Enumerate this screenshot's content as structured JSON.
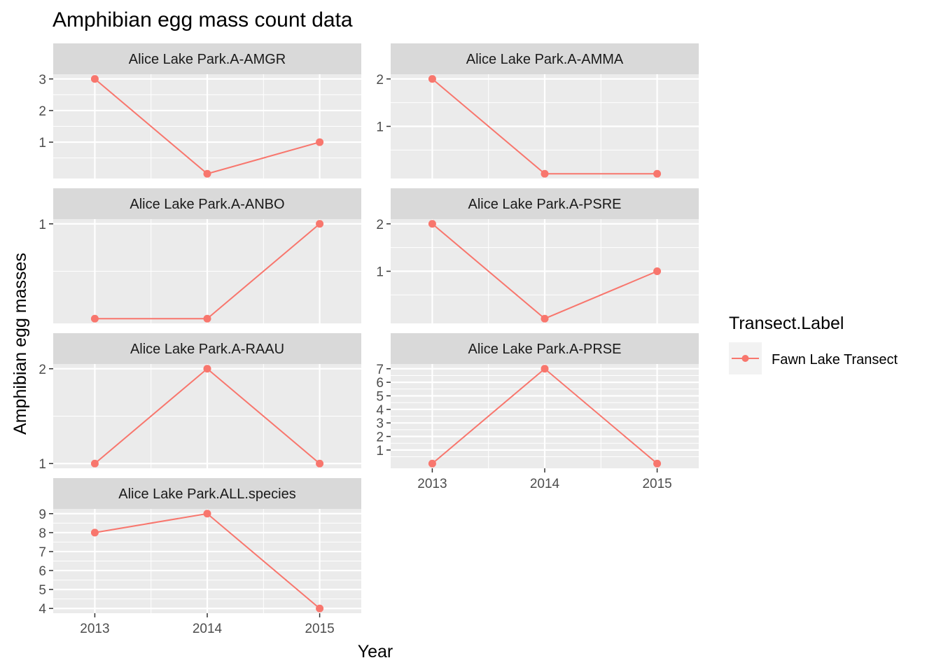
{
  "chart_data": {
    "type": "line",
    "title": "Amphibian egg mass count data",
    "xlabel": "Year",
    "ylabel": "Amphibian egg masses",
    "x_ticks": [
      2013,
      2014,
      2015
    ],
    "grid": true,
    "facet_scales": "free_y",
    "legend": {
      "title": "Transect.Label",
      "position": "right",
      "entries": [
        {
          "name": "Fawn Lake Transect",
          "color": "#F8766D"
        }
      ]
    },
    "series_color": "#F8766D",
    "panels": [
      {
        "label": "Alice Lake Park.A-AMGR",
        "x": [
          2013,
          2014,
          2015
        ],
        "y": [
          3,
          0,
          1
        ],
        "ylim": [
          -0.15,
          3.15
        ],
        "y_ticks": [
          1,
          2,
          3
        ]
      },
      {
        "label": "Alice Lake Park.A-AMMA",
        "x": [
          2013,
          2014,
          2015
        ],
        "y": [
          2,
          0,
          0
        ],
        "ylim": [
          -0.1,
          2.1
        ],
        "y_ticks": [
          1,
          2
        ]
      },
      {
        "label": "Alice Lake Park.A-ANBO",
        "x": [
          2013,
          2014,
          2015
        ],
        "y": [
          0,
          0,
          1
        ],
        "ylim": [
          -0.05,
          1.05
        ],
        "y_ticks": [
          1
        ]
      },
      {
        "label": "Alice Lake Park.A-PSRE",
        "x": [
          2013,
          2014,
          2015
        ],
        "y": [
          2,
          0,
          1
        ],
        "ylim": [
          -0.1,
          2.1
        ],
        "y_ticks": [
          1,
          2
        ]
      },
      {
        "label": "Alice Lake Park.A-RAAU",
        "x": [
          2013,
          2014,
          2015
        ],
        "y": [
          1,
          2,
          1
        ],
        "ylim": [
          0.95,
          2.05
        ],
        "y_ticks": [
          1,
          2
        ]
      },
      {
        "label": "Alice Lake Park.A-PRSE",
        "x": [
          2013,
          2014,
          2015
        ],
        "y": [
          0,
          7,
          0
        ],
        "ylim": [
          -0.35,
          7.35
        ],
        "y_ticks": [
          1,
          2,
          3,
          4,
          5,
          6,
          7
        ]
      },
      {
        "label": "Alice Lake Park.ALL.species",
        "x": [
          2013,
          2014,
          2015
        ],
        "y": [
          8,
          9,
          4
        ],
        "ylim": [
          3.75,
          9.25
        ],
        "y_ticks": [
          4,
          5,
          6,
          7,
          8,
          9
        ]
      }
    ]
  }
}
